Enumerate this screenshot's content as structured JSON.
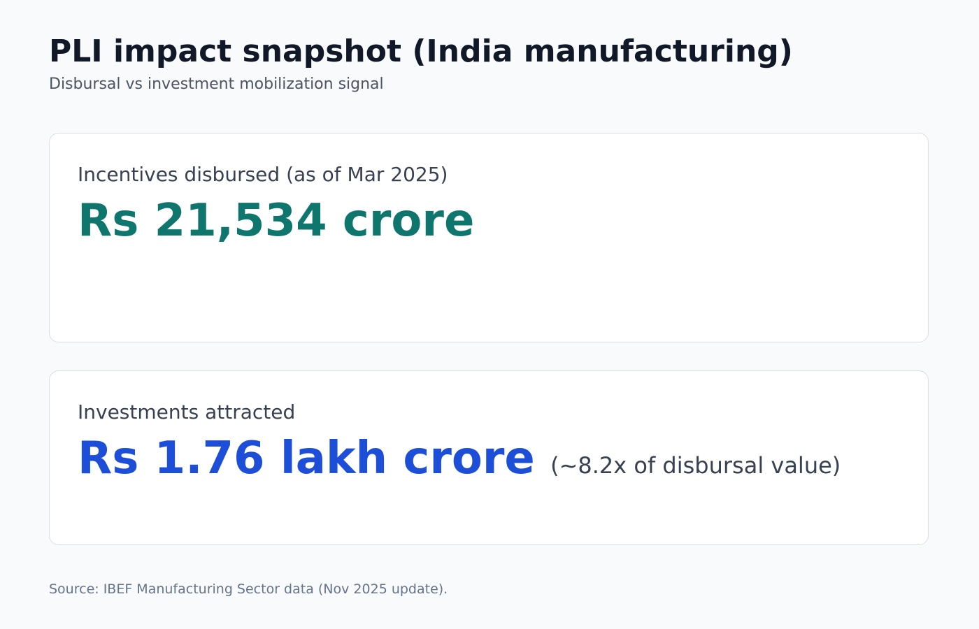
{
  "header": {
    "title": "PLI impact snapshot (India manufacturing)",
    "subtitle": "Disbursal vs investment mobilization signal"
  },
  "cards": [
    {
      "label": "Incentives disbursed (as of Mar 2025)",
      "value": "Rs 21,534 crore",
      "color": "#0f766e"
    },
    {
      "label": "Investments attracted",
      "value": "Rs 1.76 lakh crore",
      "note": "(~8.2x of disbursal value)",
      "color": "#1d4ed8"
    }
  ],
  "footer": {
    "source": "Source: IBEF Manufacturing Sector data (Nov 2025 update)."
  }
}
